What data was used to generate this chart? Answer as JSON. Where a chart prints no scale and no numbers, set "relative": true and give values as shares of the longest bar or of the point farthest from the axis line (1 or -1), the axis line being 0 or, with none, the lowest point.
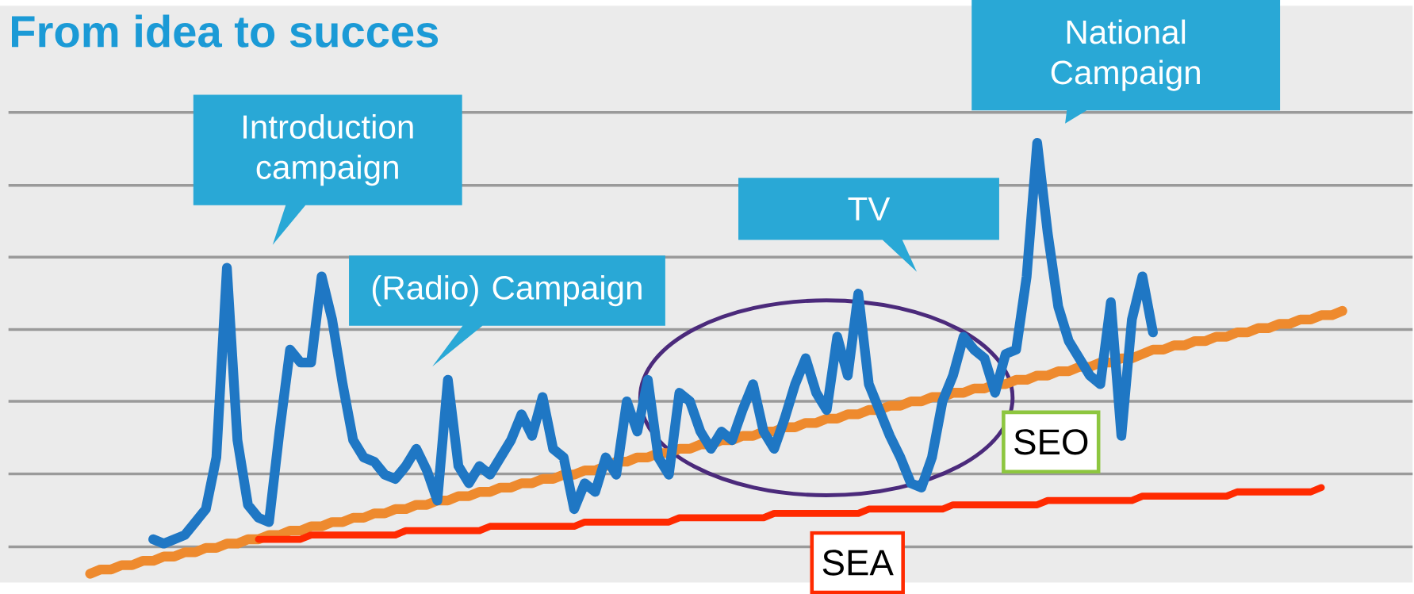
{
  "chart_data": {
    "type": "line",
    "title": "From idea to succes",
    "relative": true,
    "categories": [
      null,
      null,
      null,
      null,
      null,
      null,
      null,
      null,
      null,
      null,
      null,
      null,
      null,
      null,
      null,
      null,
      null,
      null,
      null,
      null,
      null,
      null,
      null,
      null,
      null,
      null,
      null,
      null,
      null,
      null,
      null,
      null,
      null,
      null,
      null,
      null,
      null,
      null,
      null,
      null,
      null,
      null,
      null,
      null,
      null,
      null,
      null,
      null,
      null,
      null,
      null,
      null,
      null,
      null,
      null,
      null,
      null,
      null,
      null,
      null,
      null,
      null,
      null,
      null,
      null,
      null,
      null,
      null,
      null,
      null,
      null,
      null,
      null,
      null,
      null,
      null,
      null,
      null,
      null,
      null,
      null,
      null,
      null,
      null,
      null,
      null,
      null,
      null,
      null,
      null,
      null,
      null,
      null,
      null,
      null,
      null,
      null,
      null,
      null,
      null,
      null,
      null,
      null,
      null,
      null,
      null,
      null,
      null,
      null,
      null,
      null,
      null,
      null,
      null,
      null,
      null,
      null,
      null,
      null,
      null
    ],
    "series": [
      {
        "color": "#1f77c4",
        "values": [
          null,
          null,
          null,
          null,
          null,
          null,
          0.08,
          0.07,
          0.08,
          0.09,
          0.12,
          0.15,
          0.27,
          0.71,
          0.31,
          0.16,
          0.13,
          0.12,
          0.33,
          0.52,
          0.49,
          0.49,
          0.69,
          0.59,
          0.44,
          0.31,
          0.27,
          0.26,
          0.23,
          0.22,
          0.25,
          0.29,
          0.24,
          0.17,
          0.45,
          0.25,
          0.21,
          0.25,
          0.23,
          0.27,
          0.31,
          0.37,
          0.32,
          0.41,
          0.29,
          0.27,
          0.15,
          0.21,
          0.19,
          0.27,
          0.23,
          0.4,
          0.33,
          0.45,
          0.27,
          0.23,
          0.42,
          0.4,
          0.33,
          0.29,
          0.33,
          0.31,
          0.38,
          0.44,
          0.33,
          0.29,
          0.36,
          0.44,
          0.5,
          0.42,
          0.38,
          0.55,
          0.46,
          0.65,
          0.44,
          0.38,
          0.32,
          0.27,
          0.21,
          0.2,
          0.27,
          0.4,
          0.46,
          0.55,
          0.52,
          0.5,
          0.42,
          0.51,
          0.52,
          0.69,
          1.0,
          0.79,
          0.62,
          0.54,
          0.5,
          0.46,
          0.44,
          0.63,
          0.32,
          0.59,
          0.69,
          0.56,
          null,
          null,
          null,
          null,
          null,
          null,
          null,
          null,
          null,
          null,
          null,
          null,
          null,
          null,
          null,
          null,
          null,
          null
        ]
      },
      {
        "name": "SEO",
        "color": "#ee8a2e",
        "values": [
          0,
          0.01,
          0.01,
          0.02,
          0.02,
          0.03,
          0.03,
          0.04,
          0.04,
          0.05,
          0.05,
          0.06,
          0.06,
          0.07,
          0.07,
          0.08,
          0.08,
          0.09,
          0.09,
          0.1,
          0.1,
          0.11,
          0.11,
          0.12,
          0.12,
          0.13,
          0.13,
          0.14,
          0.14,
          0.15,
          0.15,
          0.16,
          0.16,
          0.17,
          0.17,
          0.18,
          0.18,
          0.19,
          0.19,
          0.2,
          0.2,
          0.21,
          0.21,
          0.22,
          0.22,
          0.23,
          0.23,
          0.24,
          0.24,
          0.25,
          0.26,
          0.26,
          0.27,
          0.27,
          0.28,
          0.28,
          0.29,
          0.29,
          0.3,
          0.3,
          0.31,
          0.31,
          0.32,
          0.32,
          0.33,
          0.33,
          0.34,
          0.34,
          0.35,
          0.35,
          0.36,
          0.36,
          0.37,
          0.37,
          0.38,
          0.38,
          0.39,
          0.39,
          0.4,
          0.4,
          0.41,
          0.41,
          0.42,
          0.42,
          0.43,
          0.43,
          0.44,
          0.44,
          0.45,
          0.45,
          0.46,
          0.46,
          0.47,
          0.47,
          0.48,
          0.48,
          0.49,
          0.49,
          0.5,
          0.5,
          0.51,
          0.52,
          0.52,
          0.53,
          0.53,
          0.54,
          0.54,
          0.55,
          0.55,
          0.56,
          0.56,
          0.57,
          0.57,
          0.58,
          0.58,
          0.59,
          0.59,
          0.6,
          0.6,
          0.61
        ]
      },
      {
        "name": "SEA",
        "color": "#ff2a00",
        "values": [
          null,
          null,
          null,
          null,
          null,
          null,
          null,
          null,
          null,
          null,
          null,
          null,
          null,
          null,
          null,
          null,
          0.08,
          0.08,
          0.08,
          0.08,
          0.08,
          0.09,
          0.09,
          0.09,
          0.09,
          0.09,
          0.09,
          0.09,
          0.09,
          0.09,
          0.1,
          0.1,
          0.1,
          0.1,
          0.1,
          0.1,
          0.1,
          0.1,
          0.11,
          0.11,
          0.11,
          0.11,
          0.11,
          0.11,
          0.11,
          0.11,
          0.11,
          0.12,
          0.12,
          0.12,
          0.12,
          0.12,
          0.12,
          0.12,
          0.12,
          0.12,
          0.13,
          0.13,
          0.13,
          0.13,
          0.13,
          0.13,
          0.13,
          0.13,
          0.13,
          0.14,
          0.14,
          0.14,
          0.14,
          0.14,
          0.14,
          0.14,
          0.14,
          0.14,
          0.15,
          0.15,
          0.15,
          0.15,
          0.15,
          0.15,
          0.15,
          0.15,
          0.16,
          0.16,
          0.16,
          0.16,
          0.16,
          0.16,
          0.16,
          0.16,
          0.16,
          0.17,
          0.17,
          0.17,
          0.17,
          0.17,
          0.17,
          0.17,
          0.17,
          0.17,
          0.18,
          0.18,
          0.18,
          0.18,
          0.18,
          0.18,
          0.18,
          0.18,
          0.18,
          0.19,
          0.19,
          0.19,
          0.19,
          0.19,
          0.19,
          0.19,
          0.19,
          0.2,
          null,
          null
        ]
      }
    ],
    "annotations": [
      "Introduction campaign",
      "(Radio) Campaign",
      "TV",
      "National Campaign"
    ]
  }
}
